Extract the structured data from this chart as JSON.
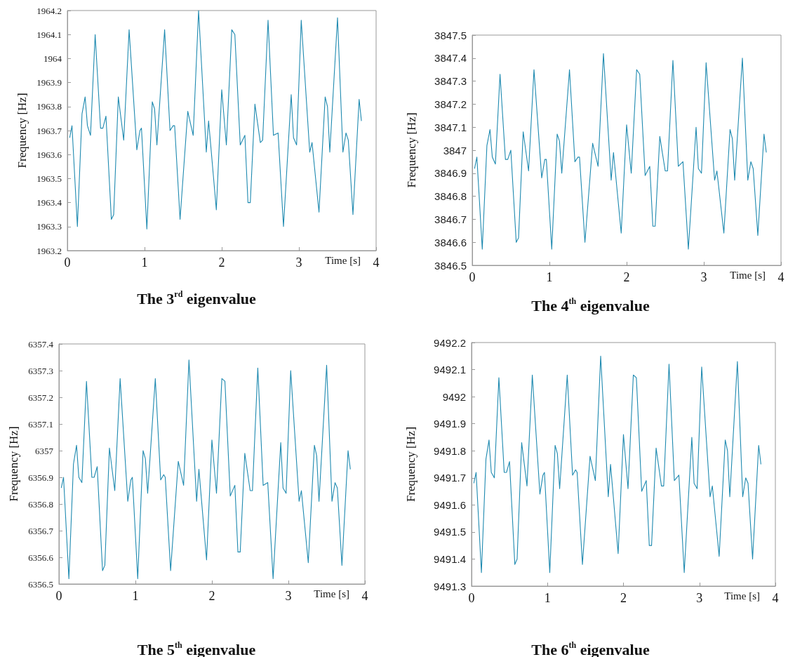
{
  "chart_data": [
    {
      "type": "line",
      "title": "The 3$^{rd}$ eigenvalue",
      "xlabel": "Time [s]",
      "ylabel": "Frequency [Hz]",
      "marker": "none",
      "line_style": "solid",
      "xlim": [
        0,
        4
      ],
      "xticks": [
        0,
        1,
        2,
        3,
        4
      ],
      "ylim": [
        1963.2,
        1964.2
      ],
      "yticks": [
        1963.2,
        1963.3,
        1963.4,
        1963.5,
        1963.6,
        1963.7,
        1963.8,
        1963.9,
        1964,
        1964.1,
        1964.2
      ],
      "x": [
        0.03,
        0.06,
        0.13,
        0.19,
        0.23,
        0.26,
        0.3,
        0.36,
        0.43,
        0.46,
        0.5,
        0.57,
        0.6,
        0.66,
        0.73,
        0.8,
        0.9,
        0.94,
        0.96,
        1.03,
        1.1,
        1.13,
        1.16,
        1.26,
        1.33,
        1.37,
        1.39,
        1.46,
        1.56,
        1.63,
        1.7,
        1.8,
        1.83,
        1.93,
        2.0,
        2.06,
        2.13,
        2.17,
        2.24,
        2.3,
        2.34,
        2.37,
        2.43,
        2.5,
        2.53,
        2.6,
        2.67,
        2.73,
        2.8,
        2.9,
        2.93,
        2.97,
        3.03,
        3.14,
        3.17,
        3.26,
        3.34,
        3.37,
        3.4,
        3.5,
        3.57,
        3.61,
        3.64,
        3.7,
        3.78,
        3.81
      ],
      "series": [
        {
          "color": "#1f8ab0",
          "values": [
            1963.67,
            1963.72,
            1963.3,
            1963.77,
            1963.84,
            1963.72,
            1963.68,
            1964.1,
            1963.71,
            1963.71,
            1963.76,
            1963.33,
            1963.35,
            1963.84,
            1963.66,
            1964.12,
            1963.62,
            1963.7,
            1963.71,
            1963.29,
            1963.82,
            1963.79,
            1963.64,
            1964.12,
            1963.7,
            1963.72,
            1963.72,
            1963.33,
            1963.78,
            1963.68,
            1964.2,
            1963.61,
            1963.74,
            1963.37,
            1963.87,
            1963.64,
            1964.12,
            1964.1,
            1963.64,
            1963.68,
            1963.4,
            1963.4,
            1963.81,
            1963.65,
            1963.66,
            1964.16,
            1963.68,
            1963.69,
            1963.3,
            1963.85,
            1963.67,
            1963.64,
            1964.16,
            1963.61,
            1963.65,
            1963.36,
            1963.84,
            1963.8,
            1963.61,
            1964.17,
            1963.61,
            1963.69,
            1963.66,
            1963.35,
            1963.83,
            1963.74
          ]
        }
      ]
    },
    {
      "type": "line",
      "title": "The 4$^{th}$ eigenvalue",
      "xlabel": "Time [s]",
      "ylabel": "Frequency [Hz]",
      "marker": "none",
      "line_style": "solid",
      "xlim": [
        0,
        4
      ],
      "xticks": [
        0,
        1,
        2,
        3,
        4
      ],
      "ylim": [
        3846.5,
        3847.5
      ],
      "yticks": [
        3846.5,
        3846.6,
        3846.7,
        3846.8,
        3846.9,
        3847,
        3847.1,
        3847.2,
        3847.3,
        3847.4,
        3847.5
      ],
      "x": [
        0.03,
        0.06,
        0.13,
        0.19,
        0.23,
        0.26,
        0.3,
        0.36,
        0.43,
        0.46,
        0.5,
        0.57,
        0.6,
        0.66,
        0.73,
        0.8,
        0.9,
        0.94,
        0.96,
        1.03,
        1.1,
        1.13,
        1.16,
        1.26,
        1.33,
        1.37,
        1.39,
        1.46,
        1.56,
        1.63,
        1.7,
        1.8,
        1.83,
        1.93,
        2.0,
        2.06,
        2.13,
        2.17,
        2.24,
        2.3,
        2.34,
        2.37,
        2.43,
        2.5,
        2.53,
        2.6,
        2.67,
        2.73,
        2.8,
        2.9,
        2.93,
        2.97,
        3.03,
        3.14,
        3.17,
        3.26,
        3.34,
        3.37,
        3.4,
        3.5,
        3.57,
        3.61,
        3.64,
        3.7,
        3.78,
        3.81
      ],
      "series": [
        {
          "color": "#1f8ab0",
          "values": [
            3846.92,
            3846.97,
            3846.57,
            3847.02,
            3847.09,
            3846.97,
            3846.94,
            3847.33,
            3846.96,
            3846.96,
            3847.0,
            3846.6,
            3846.62,
            3847.08,
            3846.91,
            3847.35,
            3846.88,
            3846.96,
            3846.96,
            3846.57,
            3847.07,
            3847.04,
            3846.9,
            3847.35,
            3846.95,
            3846.97,
            3846.97,
            3846.6,
            3847.03,
            3846.93,
            3847.42,
            3846.87,
            3846.99,
            3846.64,
            3847.11,
            3846.9,
            3847.35,
            3847.33,
            3846.89,
            3846.93,
            3846.67,
            3846.67,
            3847.06,
            3846.91,
            3846.91,
            3847.39,
            3846.93,
            3846.95,
            3846.57,
            3847.1,
            3846.92,
            3846.9,
            3847.38,
            3846.87,
            3846.91,
            3846.64,
            3847.09,
            3847.05,
            3846.87,
            3847.4,
            3846.87,
            3846.95,
            3846.92,
            3846.63,
            3847.07,
            3846.99
          ]
        }
      ]
    },
    {
      "type": "line",
      "title": "The 5$^{th}$ eigenvalue",
      "xlabel": "Time [s]",
      "ylabel": "Frequency [Hz]",
      "marker": "none",
      "line_style": "solid",
      "xlim": [
        0,
        4
      ],
      "xticks": [
        0,
        1,
        2,
        3,
        4
      ],
      "ylim": [
        6356.5,
        6357.4
      ],
      "yticks": [
        6356.5,
        6356.6,
        6356.7,
        6356.8,
        6356.9,
        6357,
        6357.1,
        6357.2,
        6357.3,
        6357.4
      ],
      "x": [
        0.03,
        0.06,
        0.13,
        0.19,
        0.23,
        0.26,
        0.3,
        0.36,
        0.43,
        0.46,
        0.5,
        0.57,
        0.6,
        0.66,
        0.73,
        0.8,
        0.9,
        0.94,
        0.96,
        1.03,
        1.1,
        1.13,
        1.16,
        1.26,
        1.33,
        1.37,
        1.39,
        1.46,
        1.56,
        1.63,
        1.7,
        1.8,
        1.83,
        1.93,
        2.0,
        2.06,
        2.13,
        2.17,
        2.24,
        2.3,
        2.34,
        2.37,
        2.43,
        2.5,
        2.53,
        2.6,
        2.67,
        2.73,
        2.8,
        2.9,
        2.93,
        2.97,
        3.03,
        3.14,
        3.17,
        3.26,
        3.34,
        3.37,
        3.4,
        3.5,
        3.57,
        3.61,
        3.64,
        3.7,
        3.78,
        3.81
      ],
      "series": [
        {
          "color": "#1f8ab0",
          "values": [
            6356.86,
            6356.9,
            6356.52,
            6356.95,
            6357.02,
            6356.9,
            6356.88,
            6357.26,
            6356.9,
            6356.9,
            6356.94,
            6356.55,
            6356.57,
            6357.01,
            6356.85,
            6357.27,
            6356.81,
            6356.89,
            6356.9,
            6356.52,
            6357.0,
            6356.97,
            6356.84,
            6357.27,
            6356.89,
            6356.91,
            6356.9,
            6356.55,
            6356.96,
            6356.87,
            6357.34,
            6356.81,
            6356.93,
            6356.59,
            6357.04,
            6356.84,
            6357.27,
            6357.26,
            6356.83,
            6356.87,
            6356.62,
            6356.62,
            6356.99,
            6356.85,
            6356.85,
            6357.31,
            6356.87,
            6356.88,
            6356.52,
            6357.03,
            6356.86,
            6356.84,
            6357.3,
            6356.81,
            6356.85,
            6356.58,
            6357.02,
            6356.98,
            6356.81,
            6357.32,
            6356.81,
            6356.88,
            6356.86,
            6356.57,
            6357.0,
            6356.93
          ]
        }
      ]
    },
    {
      "type": "line",
      "title": "The 6$^{th}$ eigenvalue",
      "xlabel": "Time [s]",
      "ylabel": "Frequency [Hz]",
      "marker": "none",
      "line_style": "solid",
      "xlim": [
        0,
        4
      ],
      "xticks": [
        0,
        1,
        2,
        3,
        4
      ],
      "ylim": [
        9491.3,
        9492.2
      ],
      "yticks": [
        9491.3,
        9491.4,
        9491.5,
        9491.6,
        9491.7,
        9491.8,
        9491.9,
        9492,
        9492.1,
        9492.2
      ],
      "x": [
        0.03,
        0.06,
        0.13,
        0.19,
        0.23,
        0.26,
        0.3,
        0.36,
        0.43,
        0.46,
        0.5,
        0.57,
        0.6,
        0.66,
        0.73,
        0.8,
        0.9,
        0.94,
        0.96,
        1.03,
        1.1,
        1.13,
        1.16,
        1.26,
        1.33,
        1.37,
        1.39,
        1.46,
        1.56,
        1.63,
        1.7,
        1.8,
        1.83,
        1.93,
        2.0,
        2.06,
        2.13,
        2.17,
        2.24,
        2.3,
        2.34,
        2.37,
        2.43,
        2.5,
        2.53,
        2.6,
        2.67,
        2.73,
        2.8,
        2.9,
        2.93,
        2.97,
        3.03,
        3.14,
        3.17,
        3.26,
        3.34,
        3.37,
        3.4,
        3.5,
        3.57,
        3.61,
        3.64,
        3.7,
        3.78,
        3.81
      ],
      "series": [
        {
          "color": "#1f8ab0",
          "values": [
            9491.68,
            9491.72,
            9491.35,
            9491.77,
            9491.84,
            9491.72,
            9491.7,
            9492.07,
            9491.72,
            9491.72,
            9491.76,
            9491.38,
            9491.4,
            9491.83,
            9491.67,
            9492.08,
            9491.64,
            9491.71,
            9491.72,
            9491.35,
            9491.82,
            9491.79,
            9491.66,
            9492.08,
            9491.71,
            9491.73,
            9491.72,
            9491.38,
            9491.78,
            9491.69,
            9492.15,
            9491.63,
            9491.75,
            9491.42,
            9491.86,
            9491.66,
            9492.08,
            9492.07,
            9491.65,
            9491.69,
            9491.45,
            9491.45,
            9491.81,
            9491.67,
            9491.67,
            9492.12,
            9491.69,
            9491.71,
            9491.35,
            9491.85,
            9491.68,
            9491.66,
            9492.11,
            9491.63,
            9491.67,
            9491.41,
            9491.84,
            9491.8,
            9491.63,
            9492.13,
            9491.63,
            9491.7,
            9491.68,
            9491.4,
            9491.82,
            9491.75
          ]
        }
      ]
    }
  ]
}
